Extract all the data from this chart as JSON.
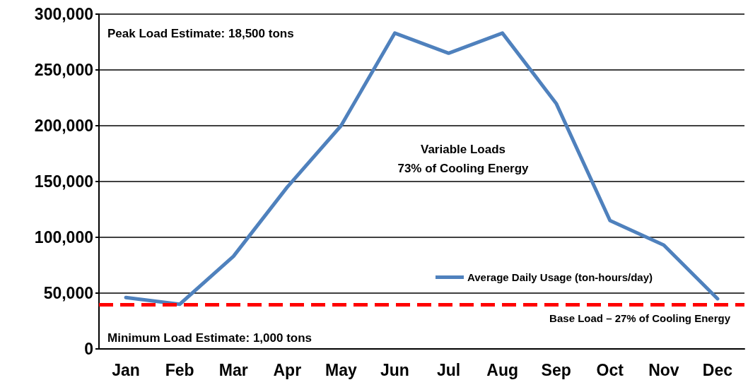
{
  "chart_data": {
    "type": "line",
    "categories": [
      "Jan",
      "Feb",
      "Mar",
      "Apr",
      "May",
      "Jun",
      "Jul",
      "Aug",
      "Sep",
      "Oct",
      "Nov",
      "Dec"
    ],
    "series": [
      {
        "name": "Average Daily Usage (ton-hours/day)",
        "color": "#4f81bd",
        "values": [
          46000,
          40000,
          83000,
          145000,
          200000,
          283000,
          265000,
          283000,
          220000,
          115000,
          93000,
          45000
        ]
      }
    ],
    "ylim": [
      0,
      300000
    ],
    "yticks": [
      {
        "value": 0,
        "label": "0"
      },
      {
        "value": 50000,
        "label": "50,000"
      },
      {
        "value": 100000,
        "label": "100,000"
      },
      {
        "value": 150000,
        "label": "150,000"
      },
      {
        "value": 200000,
        "label": "200,000"
      },
      {
        "value": 250000,
        "label": "250,000"
      },
      {
        "value": 300000,
        "label": "300,000"
      }
    ],
    "grid": "y",
    "legend": "bottom right",
    "marker": "none",
    "line_style": "solid",
    "ref_lines": [
      {
        "axis": "y",
        "value": 40000,
        "label": "Base Load – 27% of Cooling Energy",
        "color": "#ff0000",
        "line_style": "dashed"
      }
    ],
    "annotations": [
      "Peak Load Estimate: 18,500 tons",
      "Variable Loads\n73% of Cooling Energy",
      "Minimum Load Estimate: 1,000 tons"
    ]
  }
}
